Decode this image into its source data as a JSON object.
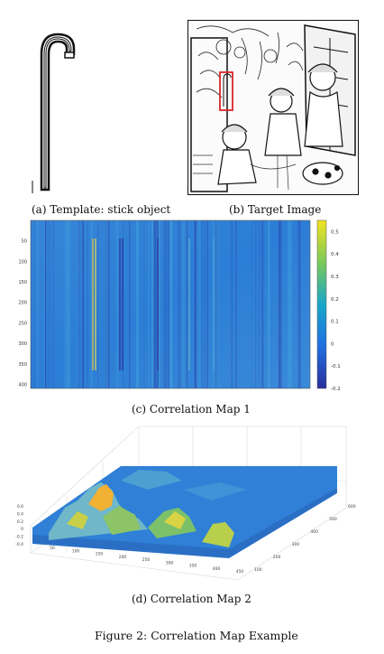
{
  "figure": {
    "caption": "Figure 2: Correlation Map Example",
    "panels": [
      {
        "id": "a",
        "caption": "(a) Template: stick object"
      },
      {
        "id": "b",
        "caption": "(b) Target Image"
      },
      {
        "id": "c",
        "caption": "(c) Correlation Map 1"
      },
      {
        "id": "d",
        "caption": "(d) Correlation Map 2"
      }
    ]
  },
  "colors": {
    "heat_low": "#2b2f9a",
    "heat_mid": "#1e88e5",
    "heat_base": "#2f80d6",
    "heat_high": "#f2e321",
    "target_box": "#d9262a"
  },
  "chart_data": [
    {
      "type": "heatmap",
      "title": "",
      "y_ticks": [
        "50",
        "100",
        "150",
        "200",
        "250",
        "300",
        "350",
        "400"
      ],
      "x_ticks": [],
      "colorbar_ticks": [
        "0.5",
        "0.4",
        "0.3",
        "0.2",
        "0.1",
        "0",
        "-0.1",
        "-0.2"
      ],
      "colorbar_range": [
        -0.2,
        0.55
      ],
      "ylim": [
        0,
        410
      ]
    },
    {
      "type": "surface",
      "title": "",
      "z_ticks": [
        "0.6",
        "0.4",
        "0.2",
        "0",
        "-0.2",
        "-0.4"
      ],
      "x_ticks": [
        "50",
        "100",
        "150",
        "200",
        "250",
        "300",
        "350",
        "400",
        "450"
      ],
      "y_ticks": [
        "100",
        "200",
        "300",
        "400",
        "500",
        "600"
      ],
      "zlim": [
        -0.4,
        0.6
      ]
    }
  ]
}
